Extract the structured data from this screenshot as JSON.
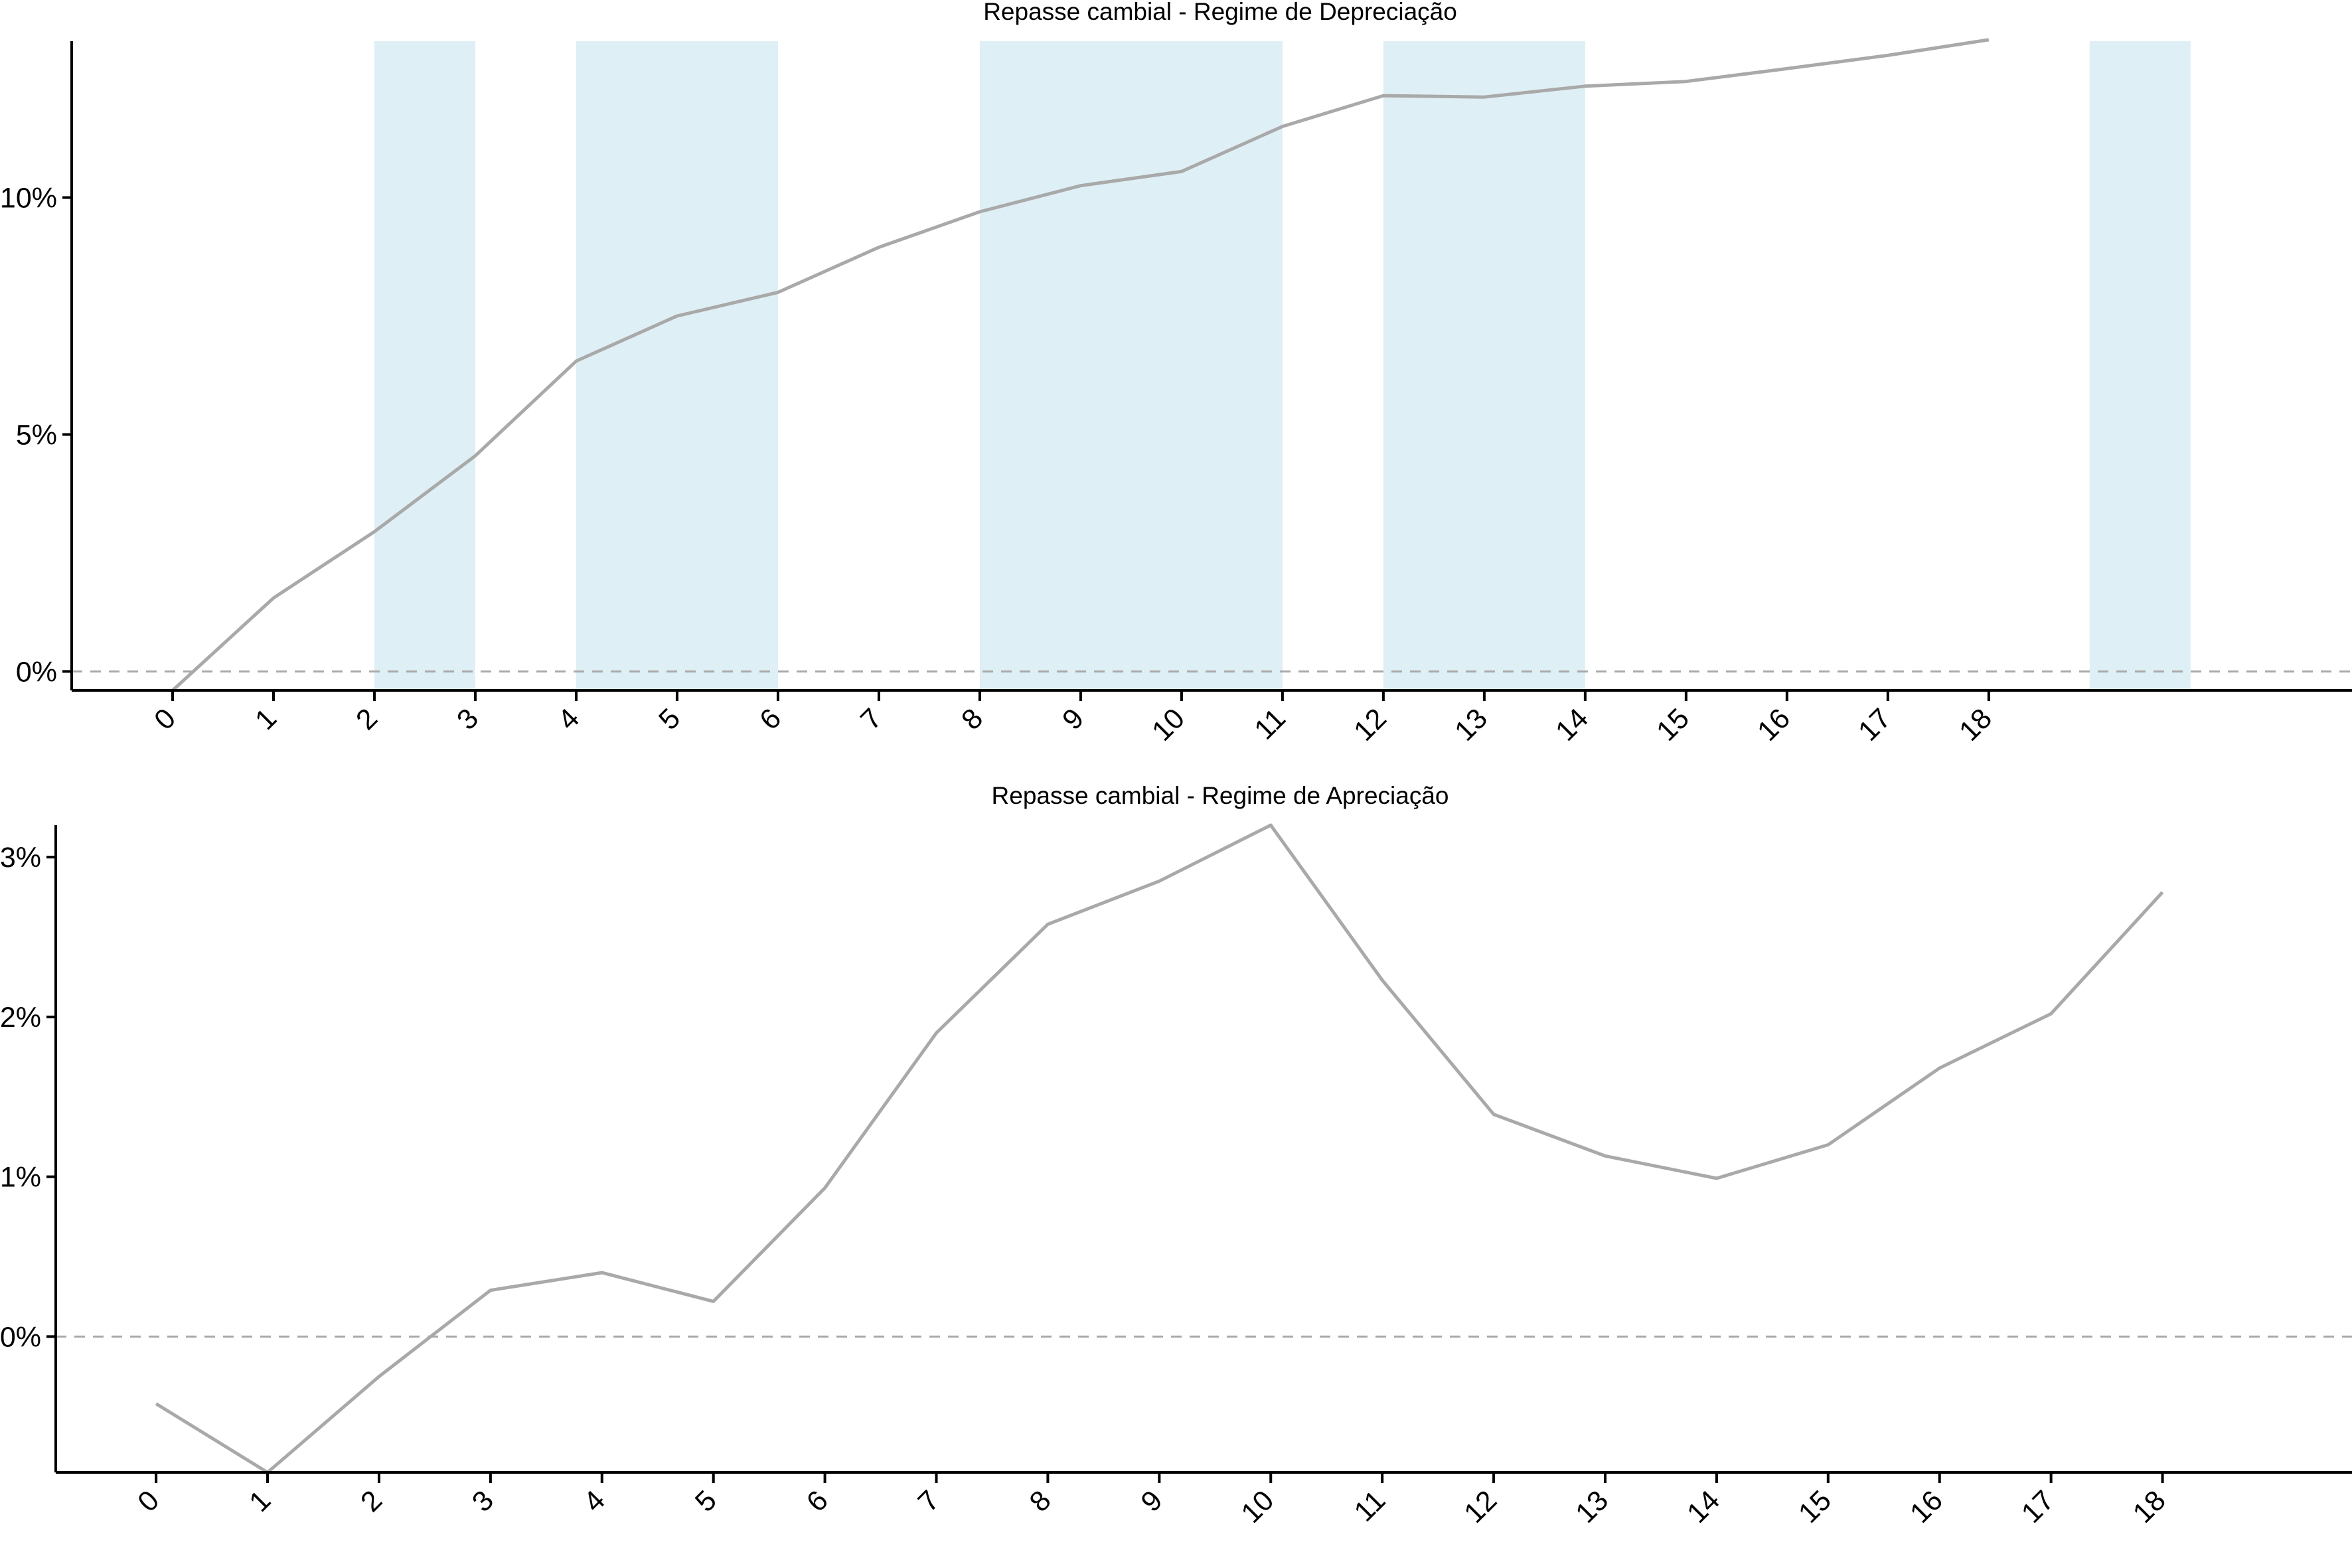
{
  "colors": {
    "line": "#a9a9a9",
    "band": "#deeff5",
    "axis": "#000000",
    "zero_line": "#a9a9a9"
  },
  "chart_data": [
    {
      "type": "line",
      "title": "Repasse cambial -  Regime de Depreciação",
      "xlabel": "",
      "ylabel": "",
      "x": [
        0,
        1,
        2,
        3,
        4,
        5,
        6,
        7,
        8,
        9,
        10,
        11,
        12,
        13,
        14,
        15,
        16,
        17,
        18
      ],
      "x_tick_labels": [
        "0",
        "1",
        "2",
        "3",
        "4",
        "5",
        "6",
        "7",
        "8",
        "9",
        "10",
        "11",
        "12",
        "13",
        "14",
        "15",
        "16",
        "17",
        "18"
      ],
      "y_ticks": [
        0,
        5,
        10
      ],
      "y_tick_labels": [
        "0%",
        "5%",
        "10%"
      ],
      "ylim": [
        -0.4,
        13.3
      ],
      "xlim": [
        -1,
        21.6
      ],
      "series": [
        {
          "values": [
            -0.4,
            1.55,
            2.95,
            4.55,
            6.55,
            7.5,
            8.0,
            8.95,
            9.7,
            10.25,
            10.55,
            11.5,
            12.15,
            12.12,
            12.35,
            12.45,
            12.72,
            13.0,
            13.33
          ]
        }
      ],
      "shaded_regions": [
        [
          2,
          3
        ],
        [
          4,
          6
        ],
        [
          8,
          11
        ],
        [
          12,
          14
        ],
        [
          19,
          20
        ]
      ],
      "reference_line": 0,
      "grid": false
    },
    {
      "type": "line",
      "title": "Repasse cambial -  Regime de Apreciação",
      "xlabel": "",
      "ylabel": "",
      "x": [
        0,
        1,
        2,
        3,
        4,
        5,
        6,
        7,
        8,
        9,
        10,
        11,
        12,
        13,
        14,
        15,
        16,
        17,
        18
      ],
      "x_tick_labels": [
        "0",
        "1",
        "2",
        "3",
        "4",
        "5",
        "6",
        "7",
        "8",
        "9",
        "10",
        "11",
        "12",
        "13",
        "14",
        "15",
        "16",
        "17",
        "18"
      ],
      "y_ticks": [
        0,
        1,
        2,
        3
      ],
      "y_tick_labels": [
        "0%",
        "1%",
        "2%",
        "3%"
      ],
      "ylim": [
        -0.85,
        3.2
      ],
      "xlim": [
        -0.9,
        19.7
      ],
      "series": [
        {
          "values": [
            -0.42,
            -0.85,
            -0.25,
            0.29,
            0.4,
            0.22,
            0.93,
            1.9,
            2.58,
            2.85,
            3.2,
            2.23,
            1.39,
            1.13,
            0.99,
            1.2,
            1.68,
            2.02,
            2.78
          ]
        }
      ],
      "reference_line": 0,
      "grid": false
    }
  ]
}
